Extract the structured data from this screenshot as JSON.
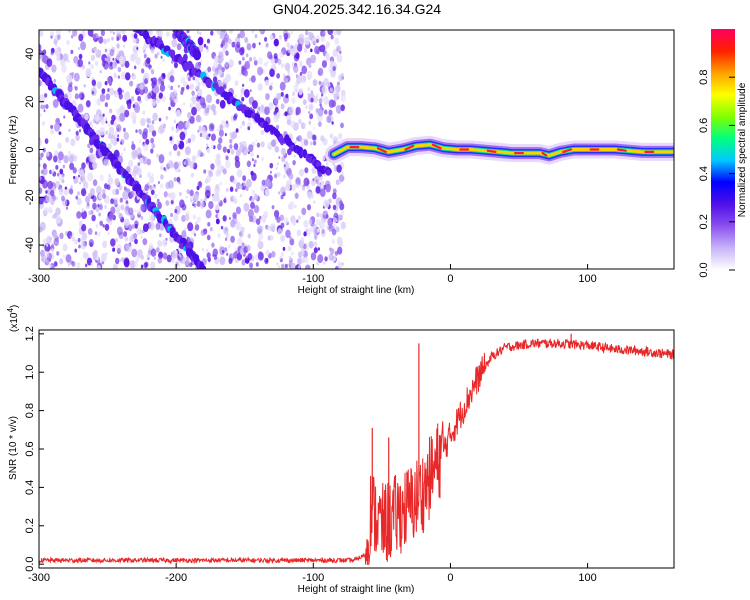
{
  "title": "GN04.2025.342.16.34.G24",
  "chart_data": [
    {
      "type": "heatmap",
      "panel": "spectrogram",
      "xlabel": "Height of straight line (km)",
      "ylabel": "Frequency (Hz)",
      "xlim": [
        -300,
        163
      ],
      "ylim": [
        -50,
        50
      ],
      "xticks": [
        -300,
        -200,
        -100,
        0,
        100
      ],
      "xtick_labels": [
        "-300",
        "-200",
        "-100",
        "0",
        "100"
      ],
      "yticks": [
        -40,
        -20,
        0,
        20,
        40
      ],
      "ytick_labels": [
        "-40",
        "-20",
        "0",
        "20",
        "40"
      ],
      "colorbar": {
        "label": "Normalized spectral amplitude",
        "range": [
          0,
          1
        ],
        "ticks": [
          0.0,
          0.2,
          0.4,
          0.6,
          0.8
        ],
        "tick_labels": [
          "0.0",
          "0.2",
          "0.4",
          "0.6",
          "0.8"
        ],
        "colors": [
          "#ffffff",
          "#c8b4f8",
          "#8c50f0",
          "#5010e8",
          "#0000ff",
          "#00c8ff",
          "#00ff80",
          "#80ff00",
          "#ffff00",
          "#ffa000",
          "#ff2000",
          "#ff0060"
        ]
      },
      "noise_region": {
        "x_start": -300,
        "x_end": -78
      },
      "diagonal_tracks": [
        {
          "x": [
            -300,
            -180
          ],
          "y": [
            33,
            -50
          ]
        },
        {
          "x": [
            -320,
            -88
          ],
          "y": [
            90,
            -10
          ]
        },
        {
          "x": [
            -200,
            -185
          ],
          "y": [
            50,
            40
          ]
        }
      ],
      "signal_track": {
        "x": [
          -85,
          -75,
          -65,
          -55,
          -45,
          -35,
          -25,
          -15,
          -5,
          5,
          15,
          25,
          35,
          45,
          55,
          65,
          72,
          80,
          90,
          100,
          110,
          120,
          130,
          140,
          150,
          163
        ],
        "y": [
          -2,
          1,
          1,
          0.5,
          -1,
          0,
          1.5,
          2,
          0.5,
          0,
          0,
          -0.5,
          -1,
          -1.5,
          -1.5,
          -1.5,
          -2.5,
          -1,
          0,
          0,
          0,
          0,
          -0.5,
          -1,
          -1,
          -1
        ]
      }
    },
    {
      "type": "line",
      "panel": "snr",
      "xlabel": "Height of straight line (km)",
      "ylabel": "SNR (10 * v/v)",
      "exponent_label": "(x10",
      "exponent_value": "4",
      "exponent_close": ")",
      "xlim": [
        -300,
        163
      ],
      "ylim": [
        -0.02,
        1.22
      ],
      "xticks": [
        -300,
        -200,
        -100,
        0,
        100
      ],
      "xtick_labels": [
        "-300",
        "-200",
        "-100",
        "0",
        "100"
      ],
      "yticks": [
        0.0,
        0.2,
        0.4,
        0.6,
        0.8,
        1.0,
        1.2
      ],
      "ytick_labels": [
        "0.0",
        "0.2",
        "0.4",
        "0.6",
        "0.8",
        "1.0",
        "1.2"
      ],
      "series": [
        {
          "name": "SNR",
          "color": "#e82828",
          "x": [
            -300,
            -250,
            -200,
            -150,
            -100,
            -70,
            -62,
            -58,
            -55,
            -50,
            -45,
            -40,
            -35,
            -30,
            -25,
            -20,
            -15,
            -10,
            -5,
            0,
            10,
            20,
            30,
            40,
            60,
            80,
            100,
            120,
            140,
            163
          ],
          "y": [
            0.02,
            0.02,
            0.02,
            0.02,
            0.02,
            0.02,
            0.05,
            0.3,
            0.25,
            0.2,
            0.22,
            0.25,
            0.28,
            0.3,
            0.34,
            0.38,
            0.45,
            0.52,
            0.6,
            0.67,
            0.82,
            0.97,
            1.08,
            1.13,
            1.15,
            1.15,
            1.14,
            1.12,
            1.11,
            1.09
          ]
        }
      ],
      "spikes": [
        {
          "x": -57,
          "y": 0.71
        },
        {
          "x": -45,
          "y": 0.66
        },
        {
          "x": -23,
          "y": 1.15
        },
        {
          "x": 88,
          "y": 1.2
        }
      ]
    }
  ]
}
